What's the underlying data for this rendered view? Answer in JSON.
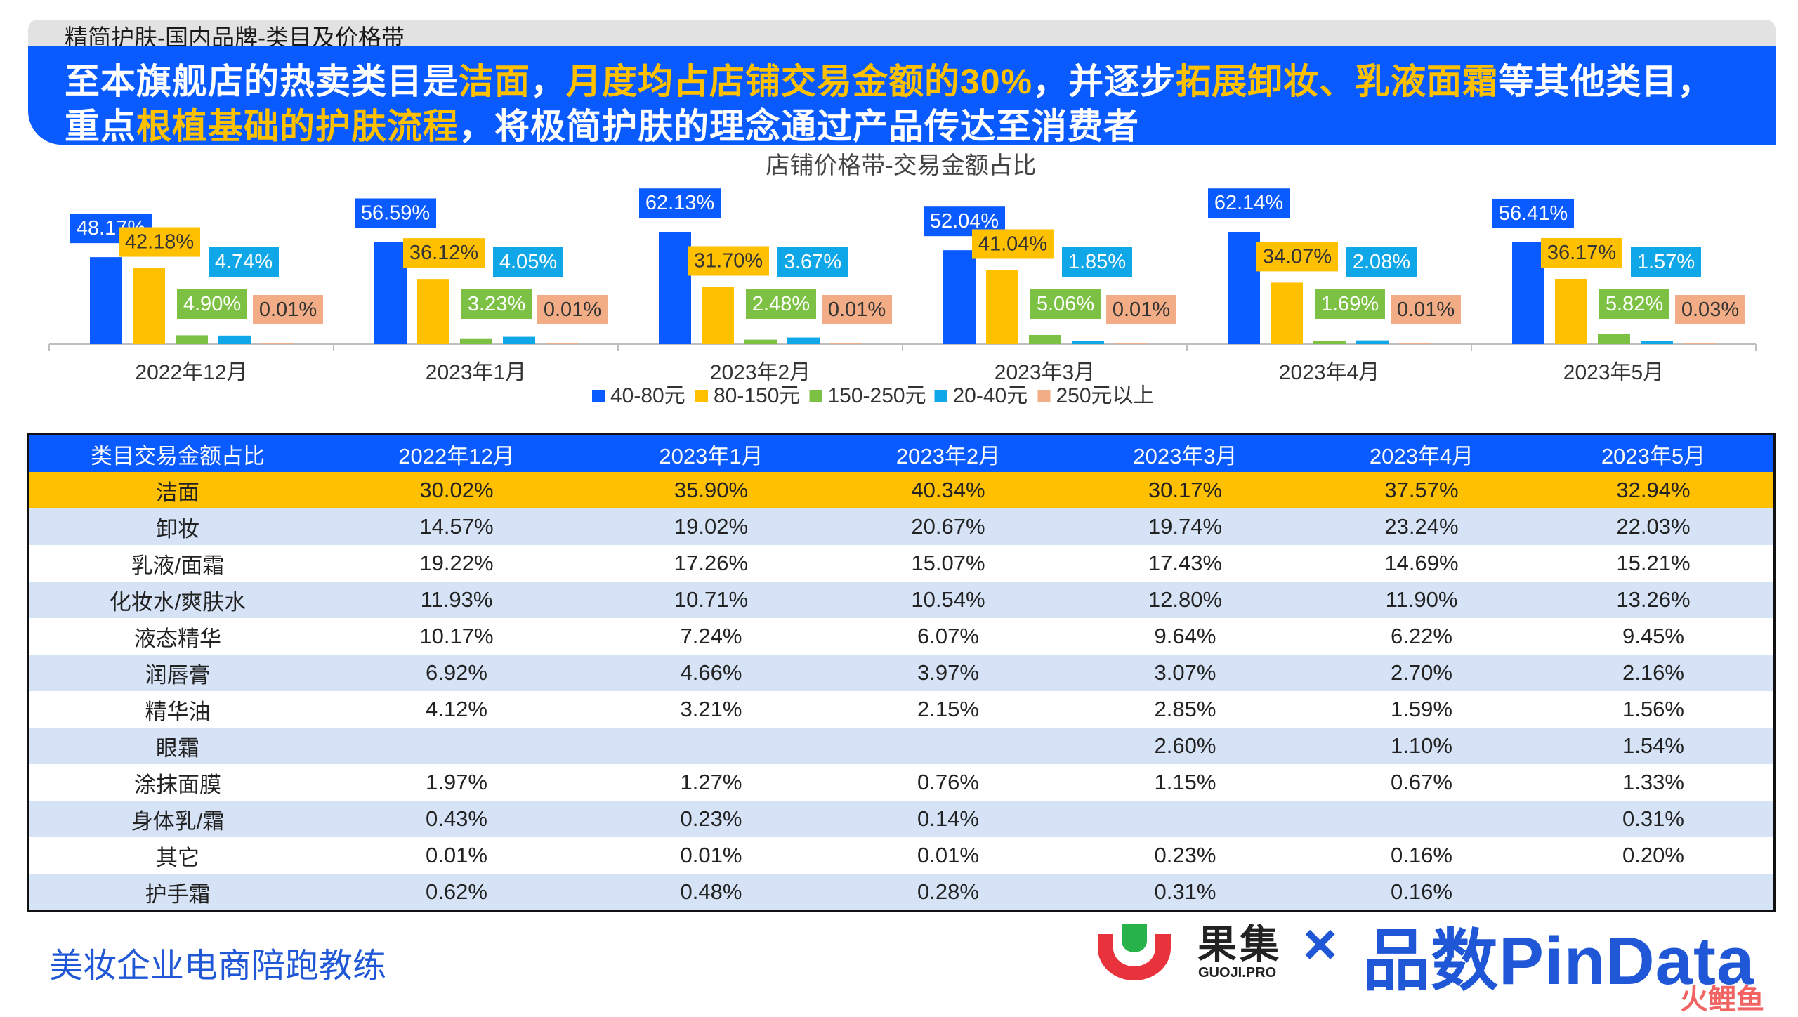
{
  "header": {
    "small_title": "精简护肤-国内品牌-类目及价格带",
    "line1": [
      {
        "t": "至本旗舰店的热卖类目是",
        "hl": false
      },
      {
        "t": "洁面",
        "hl": true
      },
      {
        "t": "，",
        "hl": false
      },
      {
        "t": "月度均占店铺交易金额的30%",
        "hl": true
      },
      {
        "t": "，并逐步",
        "hl": false
      },
      {
        "t": "拓展卸妆、乳液面霜",
        "hl": true
      },
      {
        "t": "等其他类目，",
        "hl": false
      }
    ],
    "line2": [
      {
        "t": "重点",
        "hl": false
      },
      {
        "t": "根植基础的护肤流程",
        "hl": true
      },
      {
        "t": "，将极简护肤的理念通过产品传达至消费者",
        "hl": false
      }
    ]
  },
  "colors": {
    "blue": "#0a5bff",
    "yellow": "#ffc000",
    "green": "#7cc144",
    "cyan": "#10a7e8",
    "salmon": "#f2ad86",
    "table_highlight": "#ffc000",
    "table_alt": "#d6e2f5"
  },
  "chart_data": {
    "type": "bar",
    "title": "店铺价格带-交易金额占比",
    "categories": [
      "2022年12月",
      "2023年1月",
      "2023年2月",
      "2023年3月",
      "2023年4月",
      "2023年5月"
    ],
    "series": [
      {
        "name": "40-80元",
        "color": "#0a5bff",
        "values": [
          48.17,
          56.59,
          62.13,
          52.04,
          62.14,
          56.41
        ],
        "labels": [
          "48.17%",
          "56.59%",
          "62.13%",
          "52.04%",
          "62.14%",
          "56.41%"
        ]
      },
      {
        "name": "80-150元",
        "color": "#ffc000",
        "values": [
          42.18,
          36.12,
          31.7,
          41.04,
          34.07,
          36.17
        ],
        "labels": [
          "42.18%",
          "36.12%",
          "31.70%",
          "41.04%",
          "34.07%",
          "36.17%"
        ]
      },
      {
        "name": "150-250元",
        "color": "#7cc144",
        "values": [
          4.9,
          3.23,
          2.48,
          5.06,
          1.69,
          5.82
        ],
        "labels": [
          "4.90%",
          "3.23%",
          "2.48%",
          "5.06%",
          "1.69%",
          "5.82%"
        ]
      },
      {
        "name": "20-40元",
        "color": "#10a7e8",
        "values": [
          4.74,
          4.05,
          3.67,
          1.85,
          2.08,
          1.57
        ],
        "labels": [
          "4.74%",
          "4.05%",
          "3.67%",
          "1.85%",
          "2.08%",
          "1.57%"
        ]
      },
      {
        "name": "250元以上",
        "color": "#f2ad86",
        "values": [
          0.01,
          0.01,
          0.01,
          0.01,
          0.01,
          0.03
        ],
        "labels": [
          "0.01%",
          "0.01%",
          "0.01%",
          "0.01%",
          "0.01%",
          "0.03%"
        ]
      }
    ],
    "legend_position": "bottom",
    "grid": false
  },
  "table": {
    "headers": [
      "类目交易金额占比",
      "2022年12月",
      "2023年1月",
      "2023年2月",
      "2023年3月",
      "2023年4月",
      "2023年5月"
    ],
    "rows": [
      {
        "cells": [
          "洁面",
          "30.02%",
          "35.90%",
          "40.34%",
          "30.17%",
          "37.57%",
          "32.94%"
        ],
        "highlight": true
      },
      {
        "cells": [
          "卸妆",
          "14.57%",
          "19.02%",
          "20.67%",
          "19.74%",
          "23.24%",
          "22.03%"
        ]
      },
      {
        "cells": [
          "乳液/面霜",
          "19.22%",
          "17.26%",
          "15.07%",
          "17.43%",
          "14.69%",
          "15.21%"
        ]
      },
      {
        "cells": [
          "化妆水/爽肤水",
          "11.93%",
          "10.71%",
          "10.54%",
          "12.80%",
          "11.90%",
          "13.26%"
        ]
      },
      {
        "cells": [
          "液态精华",
          "10.17%",
          "7.24%",
          "6.07%",
          "9.64%",
          "6.22%",
          "9.45%"
        ]
      },
      {
        "cells": [
          "润唇膏",
          "6.92%",
          "4.66%",
          "3.97%",
          "3.07%",
          "2.70%",
          "2.16%"
        ]
      },
      {
        "cells": [
          "精华油",
          "4.12%",
          "3.21%",
          "2.15%",
          "2.85%",
          "1.59%",
          "1.56%"
        ]
      },
      {
        "cells": [
          "眼霜",
          "",
          "",
          "",
          "2.60%",
          "1.10%",
          "1.54%"
        ]
      },
      {
        "cells": [
          "涂抹面膜",
          "1.97%",
          "1.27%",
          "0.76%",
          "1.15%",
          "0.67%",
          "1.33%"
        ]
      },
      {
        "cells": [
          "身体乳/霜",
          "0.43%",
          "0.23%",
          "0.14%",
          "",
          "",
          "0.31%"
        ]
      },
      {
        "cells": [
          "其它",
          "0.01%",
          "0.01%",
          "0.01%",
          "0.23%",
          "0.16%",
          "0.20%"
        ]
      },
      {
        "cells": [
          "护手霜",
          "0.62%",
          "0.48%",
          "0.28%",
          "0.31%",
          "0.16%",
          ""
        ]
      }
    ]
  },
  "footer": {
    "left_text": "美妆企业电商陪跑教练",
    "brand1_name": "果集",
    "brand1_sub": "GUOJI.PRO",
    "times": "×",
    "brand2": "品数PinData",
    "watermark": "火鲤鱼"
  }
}
